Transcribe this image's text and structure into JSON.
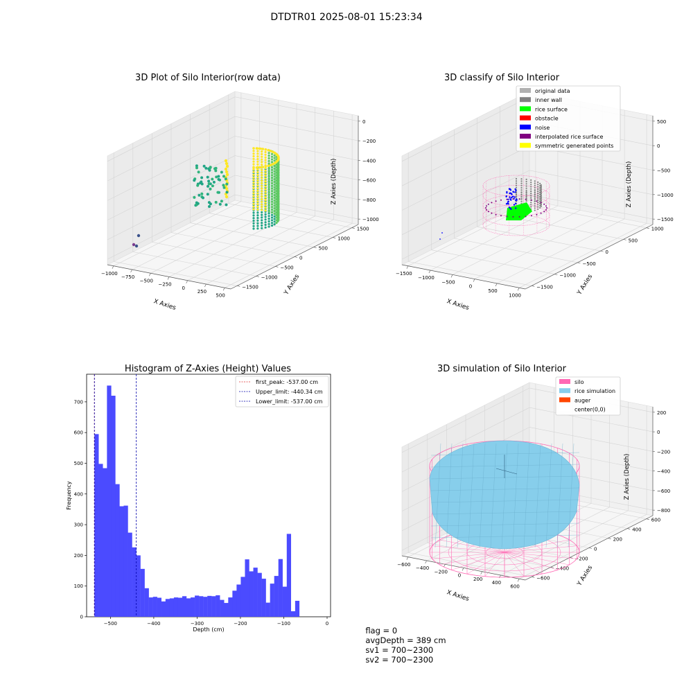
{
  "suptitle": "DTDTR01 2025-08-01 15:23:34",
  "status": {
    "flag": "flag = 0",
    "avg_depth": "avgDepth = 389 cm",
    "sv1": "sv1 = 700~2300",
    "sv2": "sv2 = 700~2300"
  },
  "chart_data": [
    {
      "type": "scatter",
      "title": "3D Plot of Silo Interior(row data)",
      "xlabel": "X Axies",
      "ylabel": "Y Axies",
      "zlabel": "Z Axies (Depth)",
      "x_ticks": [
        "−1000",
        "−750",
        "−500",
        "−250",
        "0",
        "250",
        "500"
      ],
      "y_ticks": [
        "−1500",
        "−1000",
        "−500",
        "0",
        "500",
        "1000",
        "1500"
      ],
      "z_ticks": [
        "−1000",
        "−800",
        "−600",
        "−400",
        "−200",
        "0"
      ],
      "colormap": "viridis",
      "colors": {
        "low": "#3b528b",
        "mid": "#21a585",
        "high": "#fde725"
      }
    },
    {
      "type": "scatter",
      "title": "3D classify of Silo Interior",
      "x_ticks": [
        "−1500",
        "−1000",
        "−500",
        "0",
        "500",
        "1000"
      ],
      "y_ticks": [
        "−1500",
        "−1000",
        "−500",
        "0",
        "500",
        "1000"
      ],
      "z_ticks": [
        "−1500",
        "−1000",
        "−500",
        "0",
        "500"
      ],
      "xlabel": "X Axies",
      "ylabel": "Y Axies",
      "zlabel": "Z Axies (Depth)",
      "legend_position": "top-right",
      "legend": [
        {
          "label": "original data",
          "color": "#b0b0b0"
        },
        {
          "label": "inner wall",
          "color": "#808080"
        },
        {
          "label": "rice surface",
          "color": "#00ff00"
        },
        {
          "label": "obstacle",
          "color": "#ff0000"
        },
        {
          "label": "noise",
          "color": "#0000ff"
        },
        {
          "label": "interpolated rice surface",
          "color": "#800080"
        },
        {
          "label": "symmetric generated points",
          "color": "#ffff00"
        }
      ]
    },
    {
      "type": "bar",
      "title": "Histogram of Z-Axies (Height) Values",
      "xlabel": "Depth (cm)",
      "ylabel": "Frequency",
      "xlim": [
        -555,
        8
      ],
      "ylim": [
        0,
        790
      ],
      "x_ticks": [
        -500,
        -400,
        -300,
        -200,
        -100,
        0
      ],
      "y_ticks": [
        0,
        100,
        200,
        300,
        400,
        500,
        600,
        700
      ],
      "bin_start": -537,
      "bin_width": 9.65,
      "values": [
        595,
        498,
        484,
        753,
        720,
        432,
        360,
        362,
        274,
        226,
        200,
        156,
        93,
        63,
        65,
        62,
        50,
        58,
        60,
        63,
        62,
        67,
        60,
        63,
        69,
        67,
        65,
        68,
        67,
        70,
        55,
        45,
        63,
        85,
        105,
        130,
        187,
        148,
        160,
        143,
        124,
        46,
        108,
        133,
        188,
        98,
        270,
        18,
        52
      ],
      "bar_color": "#4b4bff",
      "legend_position": "top-right",
      "lines": [
        {
          "label": "first_peak: -537.00 cm",
          "x": -537.0,
          "color": "#e03030"
        },
        {
          "label": "Upper_limit: -440.34 cm",
          "x": -440.34,
          "color": "#0000aa"
        },
        {
          "label": "Lower_limit: -537.00 cm",
          "x": -537.0,
          "color": "#0000aa"
        }
      ]
    },
    {
      "type": "area",
      "title": "3D simulation of Silo Interior",
      "xlabel": "X Axies",
      "ylabel": "Y Axies",
      "zlabel": "Z Axies (Depth)",
      "x_ticks": [
        "−600",
        "−400",
        "−200",
        "0",
        "200",
        "400",
        "600"
      ],
      "y_ticks": [
        "−600",
        "−400",
        "−200",
        "0",
        "200",
        "400",
        "600"
      ],
      "z_ticks": [
        "−800",
        "−600",
        "−400",
        "−200",
        "0",
        "200"
      ],
      "legend_position": "top-right",
      "legend": [
        {
          "label": "silo",
          "color": "#ff69b4"
        },
        {
          "label": "rice simulation",
          "color": "#87ceeb"
        },
        {
          "label": "auger",
          "color": "#ff4500"
        },
        {
          "label": "center(0,0)",
          "color": "#ffffff"
        }
      ]
    }
  ]
}
